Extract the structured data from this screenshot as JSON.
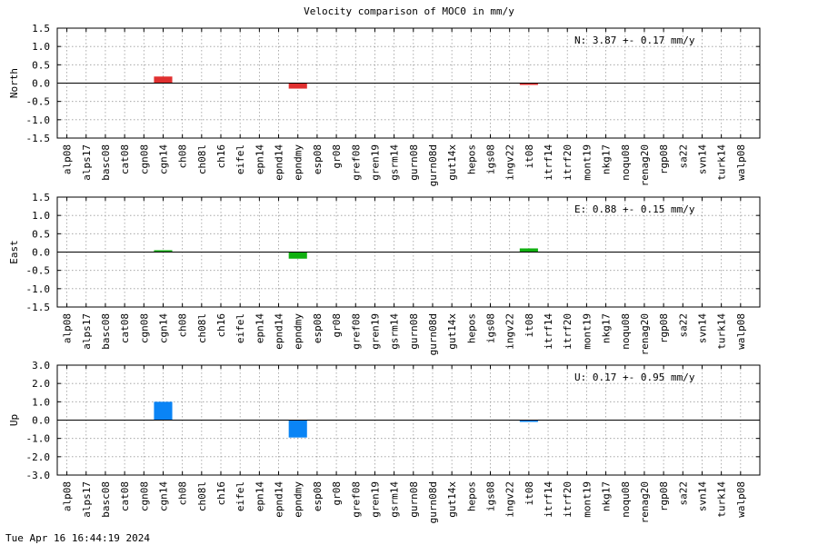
{
  "title": "Velocity comparison of MOC0 in mm/y",
  "timestamp": "Tue Apr 16 16:44:19 2024",
  "chart_data": [
    {
      "type": "bar",
      "ylabel": "North",
      "annotation": "N:   3.87 +-  0.17 mm/y",
      "color": "#e03030",
      "ylim": [
        -1.5,
        1.5
      ],
      "yticks": [
        "1.5",
        "1.0",
        "0.5",
        "0.0",
        "-0.5",
        "-1.0",
        "-1.5"
      ],
      "grid": true,
      "categories": [
        "alp08",
        "alps17",
        "basc08",
        "cat08",
        "cgn08",
        "cgn14",
        "ch08",
        "ch08l",
        "ch16",
        "eifel",
        "epn14",
        "epnd14",
        "epndmy",
        "esp08",
        "gr08",
        "gref08",
        "gren19",
        "gsrm14",
        "gurn08",
        "gurn08d",
        "gut14x",
        "hepos",
        "igs08",
        "ingv22",
        "it08",
        "itrf14",
        "itrf20",
        "mont19",
        "nkg17",
        "noqu08",
        "renag20",
        "rgp08",
        "sa22",
        "svn14",
        "turk14",
        "walp08"
      ],
      "values": [
        0,
        0,
        0,
        0,
        0,
        0.18,
        0,
        0,
        0,
        0,
        0,
        0,
        -0.15,
        0,
        0,
        0,
        0,
        0,
        0,
        0,
        0,
        0,
        0,
        0,
        -0.03,
        0,
        0,
        0,
        0,
        0,
        0,
        0,
        0,
        0,
        0,
        0
      ]
    },
    {
      "type": "bar",
      "ylabel": "East",
      "annotation": "E:   0.88 +-  0.15 mm/y",
      "color": "#10b010",
      "ylim": [
        -1.5,
        1.5
      ],
      "yticks": [
        "1.5",
        "1.0",
        "0.5",
        "0.0",
        "-0.5",
        "-1.0",
        "-1.5"
      ],
      "grid": true,
      "categories": [
        "alp08",
        "alps17",
        "basc08",
        "cat08",
        "cgn08",
        "cgn14",
        "ch08",
        "ch08l",
        "ch16",
        "eifel",
        "epn14",
        "epnd14",
        "epndmy",
        "esp08",
        "gr08",
        "gref08",
        "gren19",
        "gsrm14",
        "gurn08",
        "gurn08d",
        "gut14x",
        "hepos",
        "igs08",
        "ingv22",
        "it08",
        "itrf14",
        "itrf20",
        "mont19",
        "nkg17",
        "noqu08",
        "renag20",
        "rgp08",
        "sa22",
        "svn14",
        "turk14",
        "walp08"
      ],
      "values": [
        0,
        0,
        0,
        0,
        0,
        0.05,
        0,
        0,
        0,
        0,
        0,
        0,
        -0.18,
        0,
        0,
        0,
        0,
        0,
        0,
        0,
        0,
        0,
        0,
        0,
        0.1,
        0,
        0,
        0,
        0,
        0,
        0,
        0,
        0,
        0,
        0,
        0
      ]
    },
    {
      "type": "bar",
      "ylabel": "Up",
      "annotation": "U:   0.17 +-  0.95 mm/y",
      "color": "#0a84f5",
      "ylim": [
        -3.0,
        3.0
      ],
      "yticks": [
        "3.0",
        "2.0",
        "1.0",
        "0.0",
        "-1.0",
        "-2.0",
        "-3.0"
      ],
      "grid": true,
      "categories": [
        "alp08",
        "alps17",
        "basc08",
        "cat08",
        "cgn08",
        "cgn14",
        "ch08",
        "ch08l",
        "ch16",
        "eifel",
        "epn14",
        "epnd14",
        "epndmy",
        "esp08",
        "gr08",
        "gref08",
        "gren19",
        "gsrm14",
        "gurn08",
        "gurn08d",
        "gut14x",
        "hepos",
        "igs08",
        "ingv22",
        "it08",
        "itrf14",
        "itrf20",
        "mont19",
        "nkg17",
        "noqu08",
        "renag20",
        "rgp08",
        "sa22",
        "svn14",
        "turk14",
        "walp08"
      ],
      "values": [
        0,
        0,
        0,
        0,
        0,
        1.0,
        0,
        0,
        0,
        0,
        0,
        0,
        -0.95,
        0,
        0,
        0,
        0,
        0,
        0,
        0,
        0,
        0,
        0,
        0,
        -0.05,
        0,
        0,
        0,
        0,
        0,
        0,
        0,
        0,
        0,
        0,
        0
      ]
    }
  ]
}
